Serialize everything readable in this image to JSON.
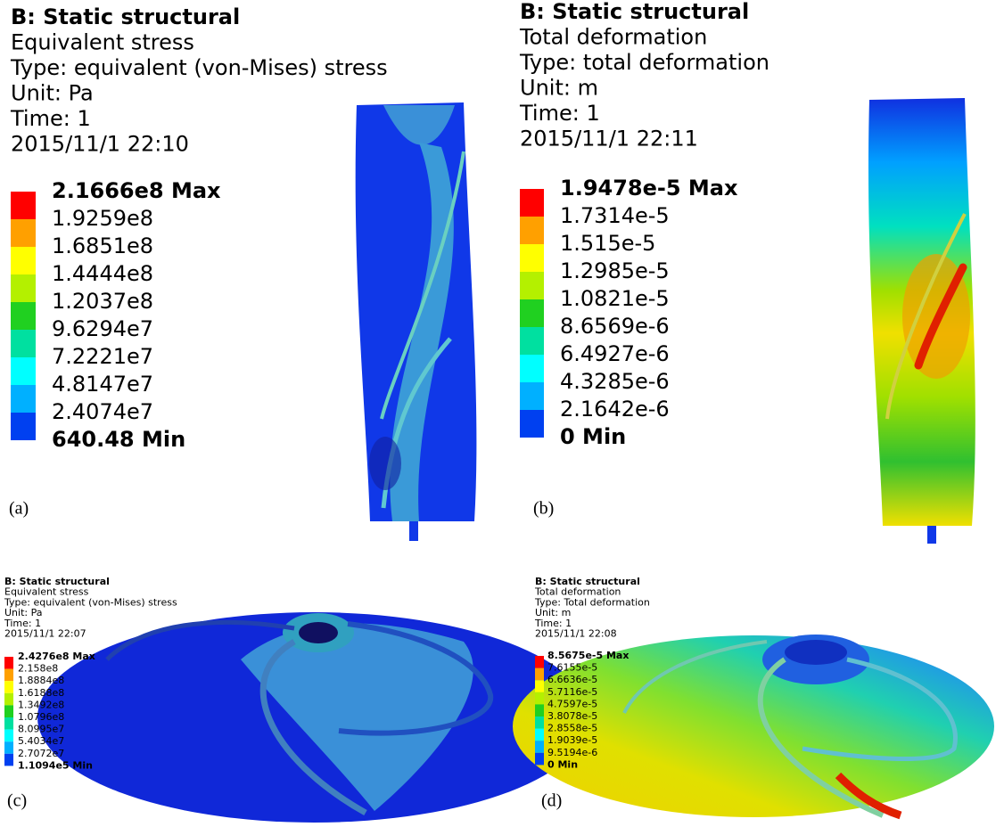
{
  "panels": [
    {
      "lines": [
        "B: Static structural",
        "Equivalent stress",
        "Type: equivalent (von-Mises) stress",
        "Unit: Pa",
        "Time: 1",
        "2015/11/1 22:10"
      ],
      "legend": [
        "2.1666e8 Max",
        "1.9259e8",
        "1.6851e8",
        "1.4444e8",
        "1.2037e8",
        "9.6294e7",
        "7.2221e7",
        "4.8147e7",
        "2.4074e7",
        "640.48 Min"
      ],
      "letter": "(a)"
    },
    {
      "lines": [
        "B: Static structural",
        "Total deformation",
        "Type: total deformation",
        "Unit: m",
        "Time: 1",
        "2015/11/1 22:11"
      ],
      "legend": [
        "1.9478e-5 Max",
        "1.7314e-5",
        "1.515e-5",
        "1.2985e-5",
        "1.0821e-5",
        "8.6569e-6",
        "6.4927e-6",
        "4.3285e-6",
        "2.1642e-6",
        "0 Min"
      ],
      "letter": "(b)"
    },
    {
      "lines": [
        "B: Static structural",
        "Equivalent stress",
        "Type: equivalent (von-Mises) stress",
        "Unit: Pa",
        "Time: 1",
        "2015/11/1 22:07"
      ],
      "legend": [
        "2.4276e8 Max",
        "2.158e8",
        "1.8884e8",
        "1.6188e8",
        "1.3492e8",
        "1.0796e8",
        "8.0995e7",
        "5.4034e7",
        "2.7072e7",
        "1.1094e5 Min"
      ],
      "letter": "(c)"
    },
    {
      "lines": [
        "B: Static structural",
        "Total deformation",
        "Type: Total deformation",
        "Unit: m",
        "Time: 1",
        "2015/11/1 22:08"
      ],
      "legend": [
        "8.5675e-5 Max",
        "7.6155e-5",
        "6.6636e-5",
        "5.7116e-5",
        "4.7597e-5",
        "3.8078e-5",
        "2.8558e-5",
        "1.9039e-5",
        "9.5194e-6",
        "0 Min"
      ],
      "letter": "(d)"
    }
  ]
}
